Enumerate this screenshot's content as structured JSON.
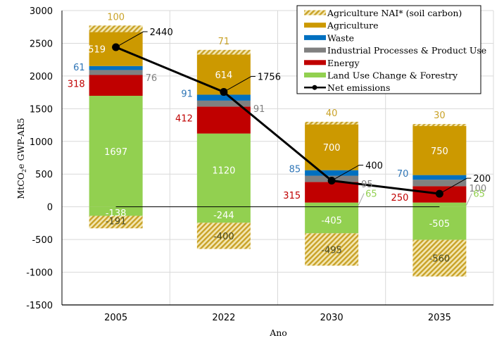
{
  "chart_data": {
    "type": "bar",
    "subtype": "stacked-bar-with-line",
    "title": "",
    "xlabel": "Ano",
    "ylabel": "MtCO2e GWP-AR5",
    "ylabel_parts": {
      "prefix": "MtCO",
      "subscript": "2",
      "suffix": "e GWP-AR5"
    },
    "ylim": [
      -1500,
      3000
    ],
    "yticks": [
      3000,
      2500,
      2000,
      1500,
      1000,
      500,
      0,
      -500,
      -1000,
      -1500
    ],
    "grid": true,
    "legend_position": "top-right",
    "categories": [
      "2005",
      "2022",
      "2030",
      "2035"
    ],
    "colors": {
      "lucf": "#92d050",
      "energy": "#c00000",
      "ippu": "#808080",
      "waste": "#0070c0",
      "agriculture": "#cc9900",
      "nai": "#c9a227",
      "net": "#000000"
    },
    "series": [
      {
        "key": "lucf",
        "name": "Land Use Change & Forestry",
        "positive": [
          1697,
          1120,
          65,
          65
        ],
        "negative": [
          -138,
          -244,
          -405,
          -505
        ],
        "label_color": "#ffffff",
        "pos_label_color": [
          "#ffffff",
          "#ffffff",
          "#92d050",
          "#92d050"
        ]
      },
      {
        "key": "energy",
        "name": "Energy",
        "values": [
          318,
          412,
          315,
          250
        ],
        "label_color": "#c00000"
      },
      {
        "key": "ippu",
        "name": "Industrial Processes & Product Use",
        "values": [
          76,
          91,
          95,
          100
        ],
        "label_color": "#808080"
      },
      {
        "key": "waste",
        "name": "Waste",
        "values": [
          61,
          91,
          85,
          70
        ],
        "label_color": "#2e75b6"
      },
      {
        "key": "agriculture",
        "name": "Agriculture",
        "values": [
          519,
          614,
          700,
          750
        ],
        "label_color": "#ffffff"
      },
      {
        "key": "nai",
        "name": "Agriculture NAI* (soil carbon)",
        "positive": [
          100,
          71,
          40,
          30
        ],
        "negative": [
          -191,
          -400,
          -495,
          -560
        ],
        "label_color": "#c9a227",
        "neg_label_color": "#4a4a20",
        "pattern": "hatched"
      }
    ],
    "net_emissions": {
      "name": "Net emissions",
      "values": [
        2440,
        1756,
        400,
        200
      ]
    },
    "legend": [
      "Agriculture NAI* (soil carbon)",
      "Agriculture",
      "Waste",
      "Industrial Processes & Product Use",
      "Energy",
      "Land Use Change & Forestry",
      "Net emissions"
    ]
  }
}
